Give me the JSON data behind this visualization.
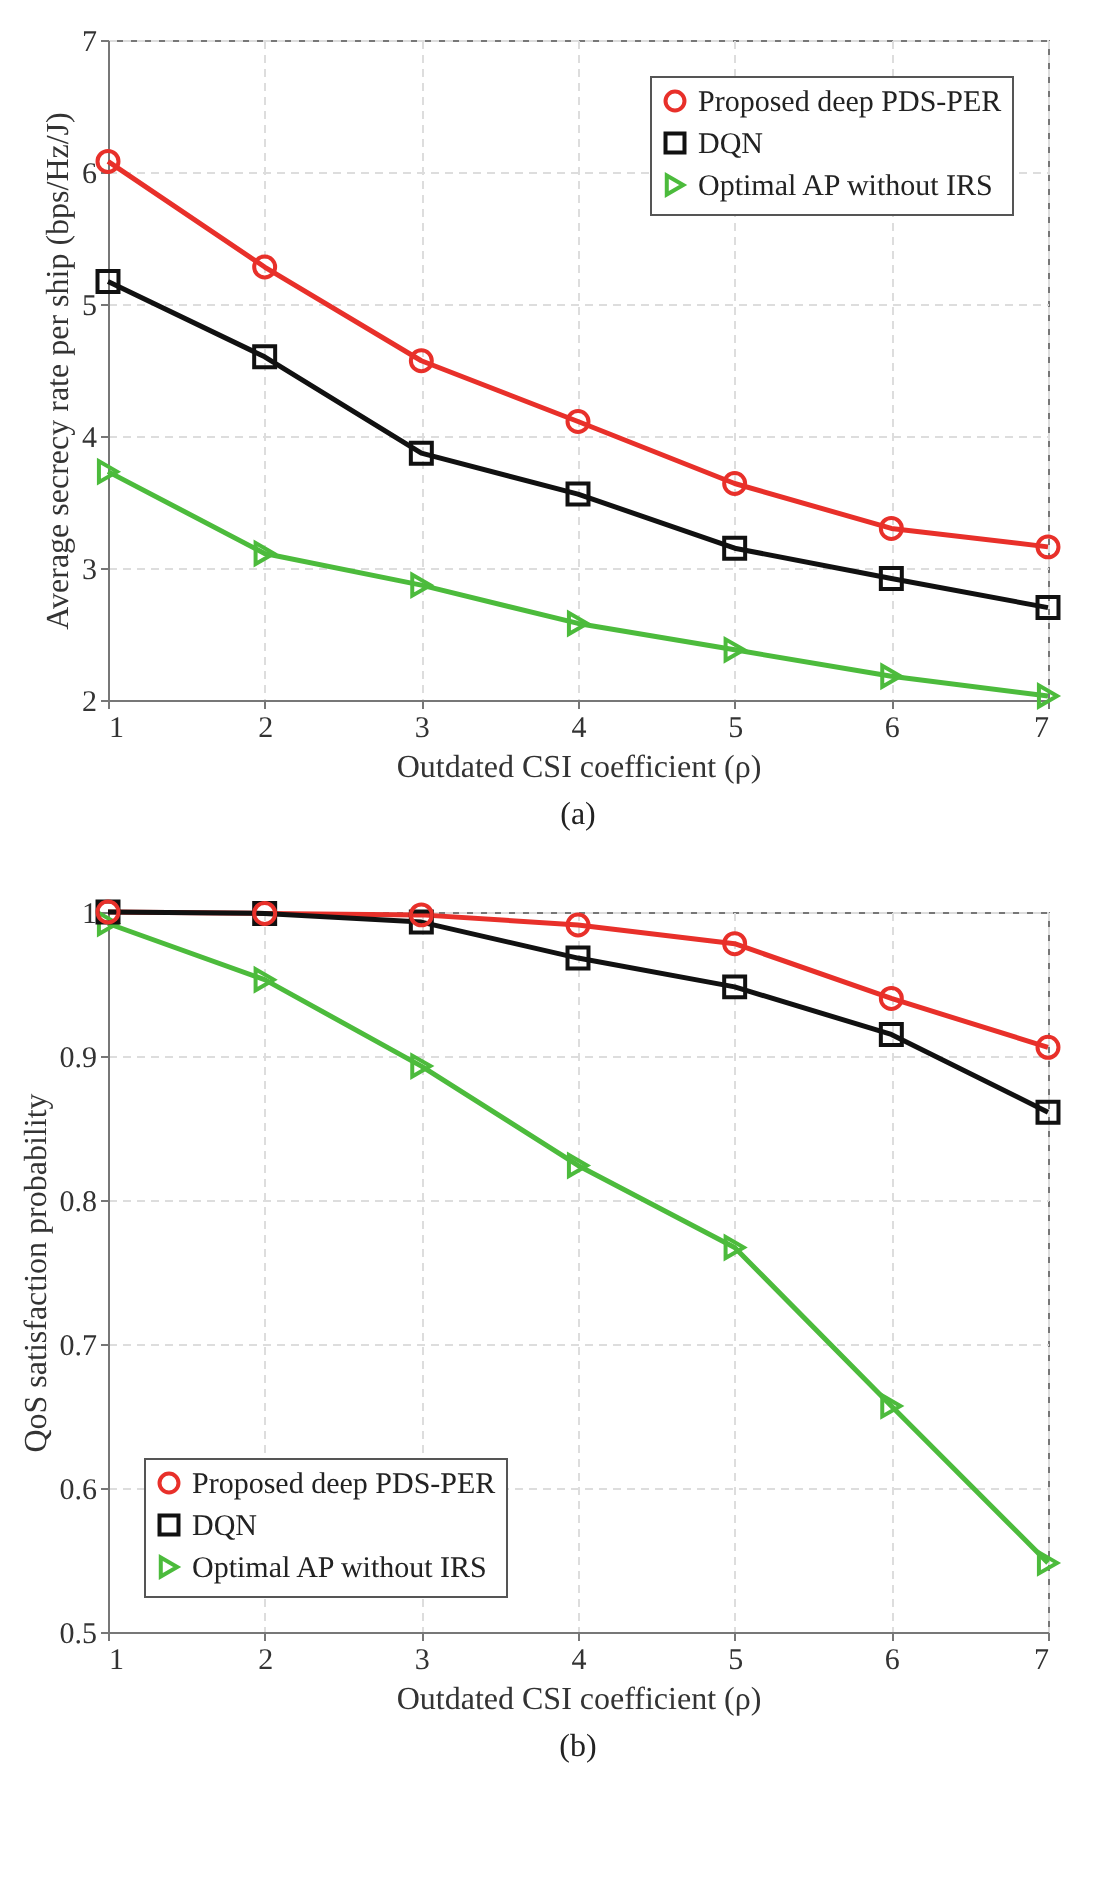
{
  "chart_data": [
    {
      "type": "line",
      "xlabel": "Outdated CSI coefficient (ρ)",
      "ylabel": "Average secrecy rate per ship  (bps/Hz/J)",
      "annotations": [
        "(a)"
      ],
      "x": [
        1,
        2,
        3,
        4,
        5,
        6,
        7
      ],
      "xlim": [
        1,
        7
      ],
      "xticks": [
        1,
        2,
        3,
        4,
        5,
        6,
        7
      ],
      "ylim": [
        2,
        7
      ],
      "yticks": [
        2,
        3,
        4,
        5,
        6,
        7
      ],
      "grid": true,
      "legend": "top right",
      "series": [
        {
          "name": "Proposed deep PDS-PER",
          "color": "#e8302a",
          "marker": "circle",
          "values": [
            6.08,
            5.28,
            4.57,
            4.11,
            3.64,
            3.3,
            3.16
          ]
        },
        {
          "name": "DQN",
          "color": "#111111",
          "marker": "square",
          "values": [
            5.17,
            4.6,
            3.87,
            3.56,
            3.15,
            2.92,
            2.7
          ]
        },
        {
          "name": "Optimal AP without IRS",
          "color": "#4cbb3c",
          "marker": "triangle",
          "values": [
            3.73,
            3.11,
            2.87,
            2.58,
            2.38,
            2.18,
            2.03
          ]
        }
      ]
    },
    {
      "type": "line",
      "xlabel": "Outdated CSI coefficient (ρ)",
      "ylabel": "QoS satisfaction probability",
      "annotations": [
        "(b)"
      ],
      "x": [
        1,
        2,
        3,
        4,
        5,
        6,
        7
      ],
      "xlim": [
        1,
        7
      ],
      "xticks": [
        1,
        2,
        3,
        4,
        5,
        6,
        7
      ],
      "ylim": [
        0.5,
        1
      ],
      "yticks": [
        0.5,
        0.6,
        0.7,
        0.8,
        0.9,
        1
      ],
      "grid": true,
      "legend": "bottom left",
      "series": [
        {
          "name": "Proposed deep PDS-PER",
          "color": "#e8302a",
          "marker": "circle",
          "values": [
            1.0,
            0.999,
            0.998,
            0.991,
            0.978,
            0.94,
            0.906
          ]
        },
        {
          "name": "DQN",
          "color": "#111111",
          "marker": "square",
          "values": [
            1.0,
            0.999,
            0.993,
            0.968,
            0.948,
            0.915,
            0.861
          ]
        },
        {
          "name": "Optimal AP without IRS",
          "color": "#4cbb3c",
          "marker": "triangle",
          "values": [
            0.992,
            0.953,
            0.893,
            0.824,
            0.767,
            0.657,
            0.548
          ]
        }
      ]
    }
  ]
}
